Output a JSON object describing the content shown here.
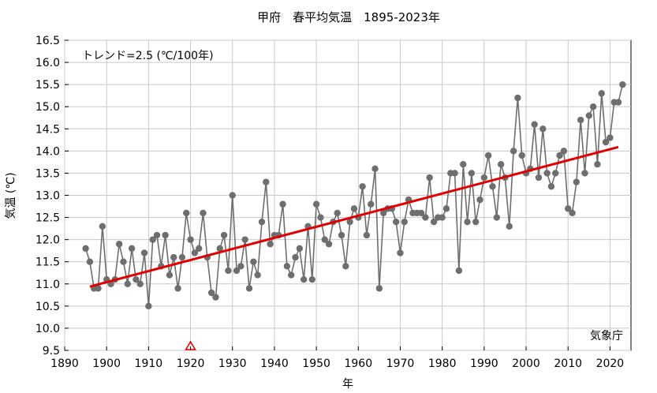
{
  "chart_data": {
    "type": "line",
    "title": "甲府　春平均気温　1895-2023年",
    "xlabel": "年",
    "ylabel": "気温 (℃)",
    "annotation": "トレンド=2.5 (℃/100年)",
    "source": "気象庁",
    "xlim": [
      1890,
      2025
    ],
    "ylim": [
      9.5,
      16.5
    ],
    "x_ticks": [
      "1890",
      "1900",
      "1910",
      "1920",
      "1930",
      "1940",
      "1950",
      "1960",
      "1970",
      "1980",
      "1990",
      "2000",
      "2010",
      "2020"
    ],
    "y_ticks": [
      "9.5",
      "10.0",
      "10.5",
      "11.0",
      "11.5",
      "12.0",
      "12.5",
      "13.0",
      "13.5",
      "14.0",
      "14.5",
      "15.0",
      "15.5",
      "16.0",
      "16.5"
    ],
    "grid": true,
    "colors": {
      "series": "#6e6e6e",
      "trend": "#e00000",
      "marker": "#e00000"
    },
    "marker_year": 1920,
    "series": [
      {
        "x": [
          1895,
          1896,
          1897,
          1898,
          1899,
          1900,
          1901,
          1902,
          1903,
          1904,
          1905,
          1906,
          1907,
          1908,
          1909,
          1910,
          1911,
          1912,
          1913,
          1914,
          1915,
          1916,
          1917,
          1918,
          1919,
          1920,
          1921,
          1922,
          1923,
          1924,
          1925,
          1926,
          1927,
          1928,
          1929,
          1930,
          1931,
          1932,
          1933,
          1934,
          1935,
          1936,
          1937,
          1938,
          1939,
          1940,
          1941,
          1942,
          1943,
          1944,
          1945,
          1946,
          1947,
          1948,
          1949,
          1950,
          1951,
          1952,
          1953,
          1954,
          1955,
          1956,
          1957,
          1958,
          1959,
          1960,
          1961,
          1962,
          1963,
          1964,
          1965,
          1966,
          1967,
          1968,
          1969,
          1970,
          1971,
          1972,
          1973,
          1974,
          1975,
          1976,
          1977,
          1978,
          1979,
          1980,
          1981,
          1982,
          1983,
          1984,
          1985,
          1986,
          1987,
          1988,
          1989,
          1990,
          1991,
          1992,
          1993,
          1994,
          1995,
          1996,
          1997,
          1998,
          1999,
          2000,
          2001,
          2002,
          2003,
          2004,
          2005,
          2006,
          2007,
          2008,
          2009,
          2010,
          2011,
          2012,
          2013,
          2014,
          2015,
          2016,
          2017,
          2018,
          2019,
          2020,
          2021,
          2022,
          2023
        ],
        "y": [
          11.8,
          11.5,
          10.9,
          10.9,
          12.3,
          11.1,
          11.0,
          11.1,
          11.9,
          11.5,
          11.0,
          11.8,
          11.1,
          11.0,
          11.7,
          10.5,
          12.0,
          12.1,
          11.4,
          12.1,
          11.2,
          11.6,
          10.9,
          11.6,
          12.6,
          12.0,
          11.7,
          11.8,
          12.6,
          11.6,
          10.8,
          10.7,
          11.8,
          12.1,
          11.3,
          13.0,
          11.3,
          11.4,
          12.0,
          10.9,
          11.5,
          11.2,
          12.4,
          13.3,
          11.9,
          12.1,
          12.1,
          12.8,
          11.4,
          11.2,
          11.6,
          11.8,
          11.1,
          12.3,
          11.1,
          12.8,
          12.5,
          12.0,
          11.9,
          12.4,
          12.6,
          12.1,
          11.4,
          12.4,
          12.7,
          12.5,
          13.2,
          12.1,
          12.8,
          13.6,
          10.9,
          12.6,
          12.7,
          12.7,
          12.4,
          11.7,
          12.4,
          12.9,
          12.6,
          12.6,
          12.6,
          12.5,
          13.4,
          12.4,
          12.5,
          12.5,
          12.7,
          13.5,
          13.5,
          11.3,
          13.7,
          12.4,
          13.5,
          12.4,
          12.9,
          13.4,
          13.9,
          13.2,
          12.5,
          13.7,
          13.4,
          12.3,
          14.0,
          15.2,
          13.9,
          13.5,
          13.6,
          14.6,
          13.4,
          14.5,
          13.5,
          13.2,
          13.5,
          13.9,
          14.0,
          12.7,
          12.6,
          13.3,
          14.7,
          13.5,
          14.8,
          15.0,
          13.7,
          15.3,
          14.2,
          14.3,
          15.1,
          15.1,
          15.5
        ]
      }
    ],
    "trend": {
      "x": [
        1896,
        2022
      ],
      "y": [
        10.94,
        14.09
      ]
    }
  }
}
